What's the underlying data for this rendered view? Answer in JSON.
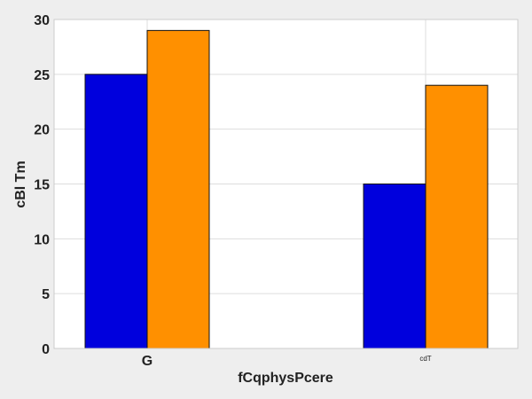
{
  "chart_data": {
    "type": "bar",
    "title": "",
    "xlabel": "fCqphysPcere",
    "ylabel": "cBl Tm",
    "categories": [
      "G",
      "cdT"
    ],
    "category_label_small": [
      false,
      true
    ],
    "series": [
      {
        "values": [
          25,
          15
        ],
        "color": "#0000dd"
      },
      {
        "values": [
          29,
          24
        ],
        "color": "#ff9000"
      }
    ],
    "ylim": [
      0,
      30
    ],
    "yticks": [
      0,
      5,
      10,
      15,
      20,
      25,
      30
    ],
    "grid": true,
    "legend": "none"
  },
  "colors": {
    "background": "#eeeeee",
    "plot_background": "#ffffff",
    "grid": "#dddddd"
  }
}
